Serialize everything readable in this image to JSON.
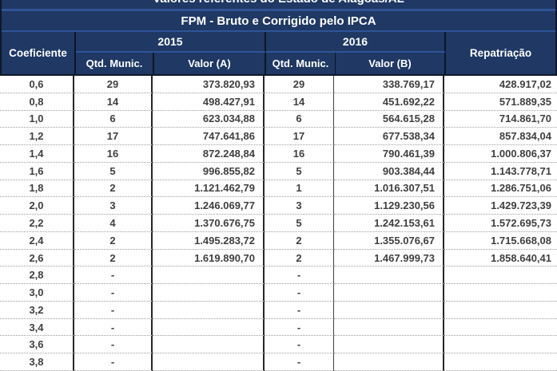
{
  "title": "Valores referentes do Estado de Alagoas/AL",
  "subtitle": "FPM - Bruto e Corrigido pelo IPCA",
  "header": {
    "coefficient": "Coeficiente",
    "year_a": "2015",
    "year_b": "2016",
    "qtd_munic_a": "Qtd. Munic.",
    "valor_a": "Valor (A)",
    "qtd_munic_b": "Qtd. Munic.",
    "valor_b": "Valor (B)",
    "repatriacao": "Repatriação"
  },
  "colors": {
    "header_bg": "#1F3864",
    "header_divider": "#2F5496",
    "header_text": "#FFFFFF",
    "body_text": "#3F3F3F",
    "row_divider_dotted": "#9D9D9D",
    "column_border": "#262626"
  },
  "chart_data": {
    "type": "table",
    "title": "Valores referentes do Estado de Alagoas/AL",
    "subtitle": "FPM - Bruto e Corrigido pelo IPCA",
    "columns": [
      "Coeficiente",
      "2015 Qtd. Munic.",
      "2015 Valor (A)",
      "2016 Qtd. Munic.",
      "2016 Valor (B)",
      "Repatriação"
    ],
    "rows": [
      [
        "0,6",
        "29",
        "373.820,93",
        "29",
        "338.769,17",
        "428.917,02"
      ],
      [
        "0,8",
        "14",
        "498.427,91",
        "14",
        "451.692,22",
        "571.889,35"
      ],
      [
        "1,0",
        "6",
        "623.034,88",
        "6",
        "564.615,28",
        "714.861,70"
      ],
      [
        "1,2",
        "17",
        "747.641,86",
        "17",
        "677.538,34",
        "857.834,04"
      ],
      [
        "1,4",
        "16",
        "872.248,84",
        "16",
        "790.461,39",
        "1.000.806,37"
      ],
      [
        "1,6",
        "5",
        "996.855,82",
        "5",
        "903.384,44",
        "1.143.778,71"
      ],
      [
        "1,8",
        "2",
        "1.121.462,79",
        "1",
        "1.016.307,51",
        "1.286.751,06"
      ],
      [
        "2,0",
        "3",
        "1.246.069,77",
        "3",
        "1.129.230,56",
        "1.429.723,39"
      ],
      [
        "2,2",
        "4",
        "1.370.676,75",
        "5",
        "1.242.153,61",
        "1.572.695,73"
      ],
      [
        "2,4",
        "2",
        "1.495.283,72",
        "2",
        "1.355.076,67",
        "1.715.668,08"
      ],
      [
        "2,6",
        "2",
        "1.619.890,70",
        "2",
        "1.467.999,73",
        "1.858.640,41"
      ],
      [
        "2,8",
        "-",
        "",
        "-",
        "",
        ""
      ],
      [
        "3,0",
        "-",
        "",
        "-",
        "",
        ""
      ],
      [
        "3,2",
        "-",
        "",
        "-",
        "",
        ""
      ],
      [
        "3,4",
        "-",
        "",
        "-",
        "",
        ""
      ],
      [
        "3,6",
        "-",
        "",
        "-",
        "",
        ""
      ],
      [
        "3,8",
        "-",
        "",
        "-",
        "",
        ""
      ]
    ]
  }
}
